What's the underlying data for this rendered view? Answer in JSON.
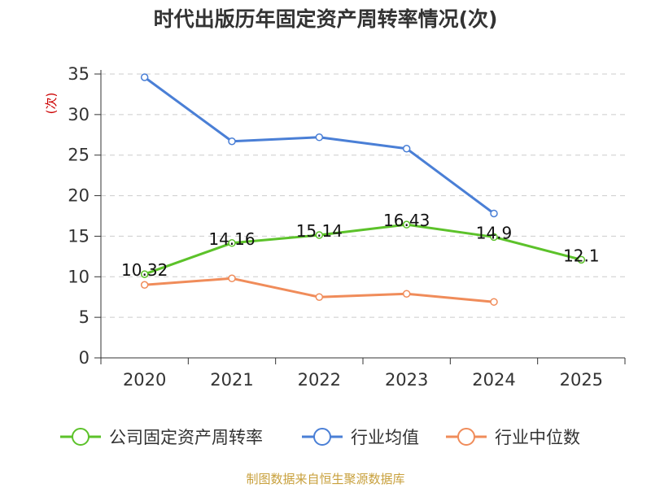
{
  "chart_data": {
    "type": "line",
    "title": "时代出版历年固定资产周转率情况(次)",
    "ylabel": "(次)",
    "xlabel": "",
    "categories": [
      "2020",
      "2021",
      "2022",
      "2023",
      "2024",
      "2025"
    ],
    "ylim": [
      0,
      35
    ],
    "yticks": [
      "0",
      "5",
      "10",
      "15",
      "20",
      "25",
      "30",
      "35"
    ],
    "grid": true,
    "legend_position": "bottom",
    "series": [
      {
        "name": "公司固定资产周转率",
        "color": "#5cc22a",
        "values": [
          10.32,
          14.16,
          15.14,
          16.43,
          14.9,
          12.1
        ],
        "labels": [
          "10.32",
          "14.16",
          "15.14",
          "16.43",
          "14.9",
          "12.1"
        ]
      },
      {
        "name": "行业均值",
        "color": "#4a7fd6",
        "values": [
          34.6,
          26.7,
          27.2,
          25.8,
          17.8,
          null
        ]
      },
      {
        "name": "行业中位数",
        "color": "#f08c5a",
        "values": [
          9.0,
          9.8,
          7.5,
          7.9,
          6.9,
          null
        ]
      }
    ]
  },
  "source_note": "制图数据来自恒生聚源数据库"
}
